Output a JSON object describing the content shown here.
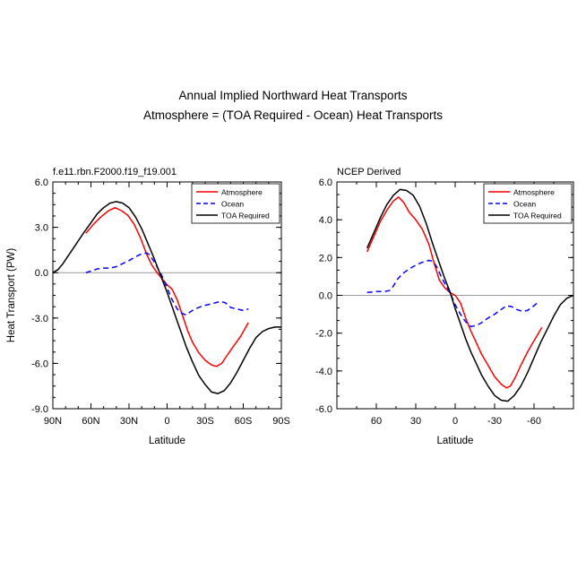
{
  "figure": {
    "title_line1": "Annual Implied Northward Heat Transports",
    "title_line2": "Atmosphere = (TOA Required - Ocean) Heat Transports"
  },
  "chart_data": [
    {
      "type": "line",
      "panel_label": "f.e11.rbn.F2000.f19_f19.001",
      "xlabel": "Latitude",
      "ylabel": "Heat Transport (PW)",
      "xlim": [
        90,
        -90
      ],
      "ylim": [
        -9,
        6
      ],
      "x_ticks": [
        {
          "value": 90,
          "label": "90N"
        },
        {
          "value": 60,
          "label": "60N"
        },
        {
          "value": 30,
          "label": "30N"
        },
        {
          "value": 0,
          "label": "0"
        },
        {
          "value": -30,
          "label": "30S"
        },
        {
          "value": -60,
          "label": "60S"
        },
        {
          "value": -90,
          "label": "90S"
        }
      ],
      "y_ticks": [
        {
          "value": 6,
          "label": "6.0"
        },
        {
          "value": 3,
          "label": "3.0"
        },
        {
          "value": 0,
          "label": "0.0"
        },
        {
          "value": -3,
          "label": "-3.0"
        },
        {
          "value": -6,
          "label": "-6.0"
        },
        {
          "value": -9,
          "label": "-9.0"
        }
      ],
      "legend_position": "top-right",
      "zero_line": true,
      "series": [
        {
          "name": "Atmosphere",
          "color": "#ff0000",
          "dash": "solid",
          "points": [
            [
              64,
              2.6
            ],
            [
              58,
              3.2
            ],
            [
              52,
              3.7
            ],
            [
              46,
              4.1
            ],
            [
              41,
              4.3
            ],
            [
              36,
              4.1
            ],
            [
              31,
              3.8
            ],
            [
              26,
              3.2
            ],
            [
              21,
              2.3
            ],
            [
              16,
              1.2
            ],
            [
              12,
              0.5
            ],
            [
              8,
              0.0
            ],
            [
              4,
              -0.4
            ],
            [
              0,
              -0.8
            ],
            [
              -4,
              -1.1
            ],
            [
              -8,
              -1.8
            ],
            [
              -12,
              -2.8
            ],
            [
              -16,
              -3.8
            ],
            [
              -20,
              -4.6
            ],
            [
              -25,
              -5.3
            ],
            [
              -30,
              -5.8
            ],
            [
              -35,
              -6.1
            ],
            [
              -39,
              -6.2
            ],
            [
              -43,
              -6.0
            ],
            [
              -47,
              -5.5
            ],
            [
              -52,
              -4.9
            ],
            [
              -58,
              -4.2
            ],
            [
              -64,
              -3.3
            ]
          ]
        },
        {
          "name": "Ocean",
          "color": "#0000ff",
          "dash": "dashed",
          "points": [
            [
              64,
              0.0
            ],
            [
              60,
              0.1
            ],
            [
              55,
              0.25
            ],
            [
              50,
              0.3
            ],
            [
              45,
              0.3
            ],
            [
              40,
              0.4
            ],
            [
              35,
              0.6
            ],
            [
              30,
              0.8
            ],
            [
              25,
              1.05
            ],
            [
              20,
              1.25
            ],
            [
              16,
              1.3
            ],
            [
              14,
              1.2
            ],
            [
              10,
              0.7
            ],
            [
              6,
              0.1
            ],
            [
              3,
              -0.4
            ],
            [
              0,
              -1.0
            ],
            [
              -4,
              -1.8
            ],
            [
              -8,
              -2.4
            ],
            [
              -12,
              -2.7
            ],
            [
              -15,
              -2.8
            ],
            [
              -18,
              -2.6
            ],
            [
              -22,
              -2.4
            ],
            [
              -28,
              -2.2
            ],
            [
              -33,
              -2.1
            ],
            [
              -38,
              -2.0
            ],
            [
              -42,
              -1.9
            ],
            [
              -46,
              -2.0
            ],
            [
              -50,
              -2.3
            ],
            [
              -55,
              -2.4
            ],
            [
              -60,
              -2.5
            ],
            [
              -64,
              -2.4
            ]
          ]
        },
        {
          "name": "TOA Required",
          "color": "#000000",
          "dash": "solid",
          "points": [
            [
              90,
              0.0
            ],
            [
              86,
              0.2
            ],
            [
              82,
              0.6
            ],
            [
              78,
              1.1
            ],
            [
              74,
              1.6
            ],
            [
              70,
              2.1
            ],
            [
              66,
              2.6
            ],
            [
              60,
              3.3
            ],
            [
              55,
              3.9
            ],
            [
              50,
              4.3
            ],
            [
              45,
              4.6
            ],
            [
              40,
              4.7
            ],
            [
              35,
              4.6
            ],
            [
              30,
              4.3
            ],
            [
              25,
              3.7
            ],
            [
              20,
              2.9
            ],
            [
              15,
              1.9
            ],
            [
              10,
              0.9
            ],
            [
              5,
              -0.2
            ],
            [
              0,
              -1.3
            ],
            [
              -5,
              -2.5
            ],
            [
              -10,
              -3.7
            ],
            [
              -15,
              -4.9
            ],
            [
              -20,
              -5.9
            ],
            [
              -25,
              -6.8
            ],
            [
              -30,
              -7.4
            ],
            [
              -35,
              -7.9
            ],
            [
              -40,
              -8.0
            ],
            [
              -45,
              -7.8
            ],
            [
              -50,
              -7.3
            ],
            [
              -55,
              -6.6
            ],
            [
              -60,
              -5.8
            ],
            [
              -65,
              -5.0
            ],
            [
              -70,
              -4.3
            ],
            [
              -75,
              -3.9
            ],
            [
              -80,
              -3.7
            ],
            [
              -85,
              -3.6
            ],
            [
              -90,
              -3.6
            ]
          ]
        }
      ]
    },
    {
      "type": "line",
      "panel_label": "NCEP Derived",
      "xlabel": "Latitude",
      "ylabel": "",
      "xlim": [
        90,
        -90
      ],
      "ylim": [
        -6,
        6
      ],
      "x_ticks": [
        {
          "value": 60,
          "label": "60"
        },
        {
          "value": 30,
          "label": "30"
        },
        {
          "value": 0,
          "label": "0"
        },
        {
          "value": -30,
          "label": "-30"
        },
        {
          "value": -60,
          "label": "-60"
        }
      ],
      "y_ticks": [
        {
          "value": 6,
          "label": "6.0"
        },
        {
          "value": 4,
          "label": "4.0"
        },
        {
          "value": 2,
          "label": "2.0"
        },
        {
          "value": 0,
          "label": "0.0"
        },
        {
          "value": -2,
          "label": "-2.0"
        },
        {
          "value": -4,
          "label": "-4.0"
        },
        {
          "value": -6,
          "label": "-6.0"
        }
      ],
      "legend_position": "top-right",
      "zero_line": true,
      "series": [
        {
          "name": "Atmosphere",
          "color": "#ff0000",
          "dash": "solid",
          "points": [
            [
              67,
              2.3
            ],
            [
              62,
              3.1
            ],
            [
              57,
              3.9
            ],
            [
              52,
              4.5
            ],
            [
              47,
              5.0
            ],
            [
              43,
              5.2
            ],
            [
              39,
              4.9
            ],
            [
              35,
              4.4
            ],
            [
              30,
              4.0
            ],
            [
              25,
              3.5
            ],
            [
              20,
              2.7
            ],
            [
              16,
              1.7
            ],
            [
              12,
              0.8
            ],
            [
              8,
              0.4
            ],
            [
              4,
              0.15
            ],
            [
              0,
              0.0
            ],
            [
              -4,
              -0.4
            ],
            [
              -8,
              -1.2
            ],
            [
              -12,
              -1.9
            ],
            [
              -16,
              -2.5
            ],
            [
              -20,
              -3.1
            ],
            [
              -25,
              -3.7
            ],
            [
              -30,
              -4.3
            ],
            [
              -35,
              -4.7
            ],
            [
              -39,
              -4.9
            ],
            [
              -42,
              -4.8
            ],
            [
              -46,
              -4.3
            ],
            [
              -50,
              -3.7
            ],
            [
              -55,
              -3.0
            ],
            [
              -60,
              -2.4
            ],
            [
              -66,
              -1.7
            ]
          ]
        },
        {
          "name": "Ocean",
          "color": "#0000ff",
          "dash": "dashed",
          "points": [
            [
              67,
              0.15
            ],
            [
              60,
              0.2
            ],
            [
              54,
              0.2
            ],
            [
              50,
              0.25
            ],
            [
              47,
              0.5
            ],
            [
              44,
              0.85
            ],
            [
              40,
              1.15
            ],
            [
              35,
              1.4
            ],
            [
              30,
              1.6
            ],
            [
              25,
              1.75
            ],
            [
              20,
              1.85
            ],
            [
              17,
              1.8
            ],
            [
              14,
              1.5
            ],
            [
              10,
              0.9
            ],
            [
              6,
              0.4
            ],
            [
              3,
              0.0
            ],
            [
              0,
              -0.5
            ],
            [
              -4,
              -1.0
            ],
            [
              -8,
              -1.4
            ],
            [
              -12,
              -1.65
            ],
            [
              -16,
              -1.6
            ],
            [
              -20,
              -1.45
            ],
            [
              -25,
              -1.2
            ],
            [
              -30,
              -1.0
            ],
            [
              -35,
              -0.75
            ],
            [
              -39,
              -0.55
            ],
            [
              -43,
              -0.6
            ],
            [
              -47,
              -0.75
            ],
            [
              -51,
              -0.85
            ],
            [
              -55,
              -0.8
            ],
            [
              -60,
              -0.55
            ],
            [
              -64,
              -0.3
            ]
          ]
        },
        {
          "name": "TOA Required",
          "color": "#000000",
          "dash": "solid",
          "points": [
            [
              67,
              2.5
            ],
            [
              62,
              3.3
            ],
            [
              57,
              4.1
            ],
            [
              52,
              4.8
            ],
            [
              47,
              5.3
            ],
            [
              42,
              5.6
            ],
            [
              37,
              5.55
            ],
            [
              32,
              5.3
            ],
            [
              27,
              4.7
            ],
            [
              22,
              3.8
            ],
            [
              17,
              2.7
            ],
            [
              12,
              1.7
            ],
            [
              8,
              0.9
            ],
            [
              4,
              0.2
            ],
            [
              0,
              -0.7
            ],
            [
              -4,
              -1.5
            ],
            [
              -8,
              -2.3
            ],
            [
              -12,
              -3.0
            ],
            [
              -16,
              -3.6
            ],
            [
              -20,
              -4.2
            ],
            [
              -25,
              -4.8
            ],
            [
              -30,
              -5.3
            ],
            [
              -35,
              -5.55
            ],
            [
              -40,
              -5.6
            ],
            [
              -45,
              -5.3
            ],
            [
              -50,
              -4.8
            ],
            [
              -55,
              -4.1
            ],
            [
              -60,
              -3.3
            ],
            [
              -65,
              -2.5
            ],
            [
              -70,
              -1.8
            ],
            [
              -75,
              -1.1
            ],
            [
              -80,
              -0.5
            ],
            [
              -85,
              -0.15
            ],
            [
              -90,
              0.0
            ]
          ]
        }
      ]
    }
  ]
}
